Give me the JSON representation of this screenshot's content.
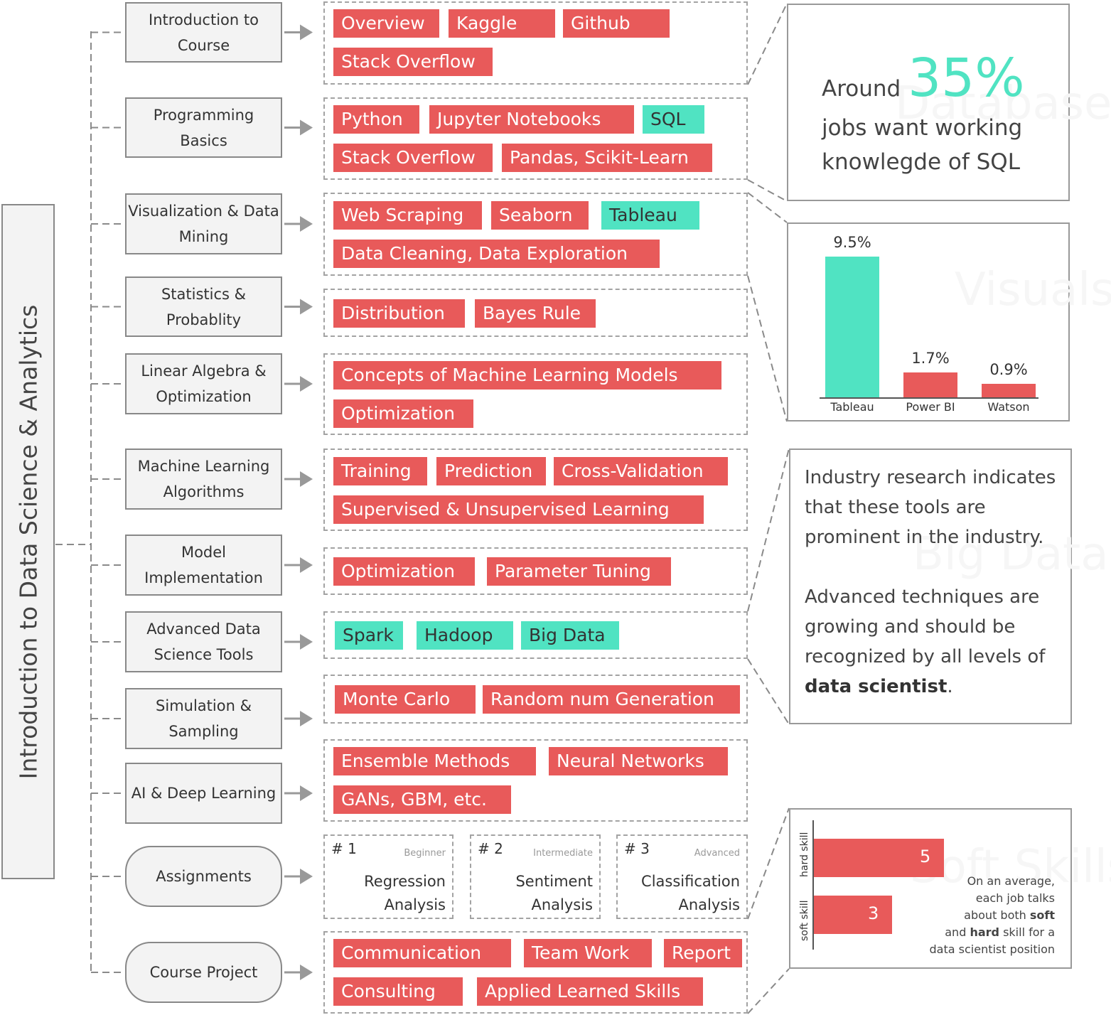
{
  "root_title": "Introduction to Data Science & Analytics",
  "rows": [
    {
      "topic": "Introduction to Course",
      "tags": [
        {
          "label": "Overview",
          "color": "#e85a5a"
        },
        {
          "label": "Kaggle",
          "color": "#e85a5a"
        },
        {
          "label": "Github",
          "color": "#e85a5a"
        },
        {
          "label": "Stack Overflow",
          "color": "#e85a5a"
        }
      ]
    },
    {
      "topic": "Programming Basics",
      "tags": [
        {
          "label": "Python",
          "color": "#e85a5a"
        },
        {
          "label": "Jupyter Notebooks",
          "color": "#e85a5a"
        },
        {
          "label": "SQL",
          "color": "#50e3c2"
        },
        {
          "label": "Stack Overflow",
          "color": "#e85a5a"
        },
        {
          "label": "Pandas, Scikit-Learn",
          "color": "#e85a5a"
        }
      ]
    },
    {
      "topic": "Visualization & Data Mining",
      "tags": [
        {
          "label": "Web Scraping",
          "color": "#e85a5a"
        },
        {
          "label": "Seaborn",
          "color": "#e85a5a"
        },
        {
          "label": "Tableau",
          "color": "#50e3c2"
        },
        {
          "label": "Data Cleaning, Data Exploration",
          "color": "#e85a5a"
        }
      ]
    },
    {
      "topic": "Statistics & Probablity",
      "tags": [
        {
          "label": "Distribution",
          "color": "#e85a5a"
        },
        {
          "label": "Bayes Rule",
          "color": "#e85a5a"
        }
      ]
    },
    {
      "topic": "Linear Algebra & Optimization",
      "tags": [
        {
          "label": "Concepts of Machine Learning Models",
          "color": "#e85a5a"
        },
        {
          "label": "Optimization",
          "color": "#e85a5a"
        }
      ]
    },
    {
      "topic": "Machine Learning Algorithms",
      "tags": [
        {
          "label": "Training",
          "color": "#e85a5a"
        },
        {
          "label": "Prediction",
          "color": "#e85a5a"
        },
        {
          "label": "Cross-Validation",
          "color": "#e85a5a"
        },
        {
          "label": "Supervised & Unsupervised Learning",
          "color": "#e85a5a"
        }
      ]
    },
    {
      "topic": "Model Implementation",
      "tags": [
        {
          "label": "Optimization",
          "color": "#e85a5a"
        },
        {
          "label": "Parameter Tuning",
          "color": "#e85a5a"
        }
      ]
    },
    {
      "topic": "Advanced Data Science Tools",
      "tags": [
        {
          "label": "Spark",
          "color": "#50e3c2"
        },
        {
          "label": "Hadoop",
          "color": "#50e3c2"
        },
        {
          "label": "Big Data",
          "color": "#50e3c2"
        }
      ]
    },
    {
      "topic": "Simulation & Sampling",
      "tags": [
        {
          "label": "Monte Carlo",
          "color": "#e85a5a"
        },
        {
          "label": "Random num Generation",
          "color": "#e85a5a"
        }
      ]
    },
    {
      "topic": "AI & Deep Learning",
      "tags": [
        {
          "label": "Ensemble Methods",
          "color": "#e85a5a"
        },
        {
          "label": "Neural Networks",
          "color": "#e85a5a"
        },
        {
          "label": "GANs, GBM, etc.",
          "color": "#e85a5a"
        }
      ]
    },
    {
      "topic": "Assignments",
      "assignments": [
        {
          "num": "# 1",
          "level": "Beginner",
          "title_line1": "Regression",
          "title_line2": "Analysis"
        },
        {
          "num": "# 2",
          "level": "Intermediate",
          "title_line1": "Sentiment",
          "title_line2": "Analysis"
        },
        {
          "num": "# 3",
          "level": "Advanced",
          "title_line1": "Classification",
          "title_line2": "Analysis"
        }
      ]
    },
    {
      "topic": "Course Project",
      "tags": [
        {
          "label": "Communication",
          "color": "#e85a5a"
        },
        {
          "label": "Team Work",
          "color": "#e85a5a"
        },
        {
          "label": "Report",
          "color": "#e85a5a"
        },
        {
          "label": "Consulting",
          "color": "#e85a5a"
        },
        {
          "label": "Applied Learned Skills",
          "color": "#e85a5a"
        }
      ]
    }
  ],
  "sql_card": {
    "prefix": "Around",
    "percent": "35%",
    "line2": "jobs want working",
    "line3": "knowlegde of SQL",
    "ghost": "Database"
  },
  "visuals_card": {
    "ghost": "Visuals"
  },
  "note_card": {
    "p1": "Industry research indicates that these tools are prominent in the industry.",
    "p2_text": "Advanced techniques are growing and should be recognized by all levels of",
    "p2_bold": "data scientist",
    "p2_end": ".",
    "ghost": "Big Data"
  },
  "soft_card": {
    "ghost": "Soft Skills",
    "note_line1": "On an average,",
    "note_line2": "each job talks",
    "note_line3_text": "about both",
    "note_line3_bold": "soft",
    "note_line4_bold": "hard",
    "note_line4_text": "skill for a",
    "note_line4_prefix": "and",
    "note_line5": "data scientist position"
  },
  "chart_data": [
    {
      "type": "bar",
      "categories": [
        "Tableau",
        "Power BI",
        "Watson"
      ],
      "values": [
        9.5,
        1.7,
        0.9
      ],
      "value_labels": [
        "9.5%",
        "1.7%",
        "0.9%"
      ],
      "colors": [
        "#50e3c2",
        "#e85a5a",
        "#e85a5a"
      ],
      "ylim": [
        0,
        9.5
      ],
      "grid": false
    },
    {
      "type": "bar",
      "orientation": "horizontal",
      "categories": [
        "hard skill",
        "soft skill"
      ],
      "values": [
        5,
        3
      ],
      "value_labels": [
        "5",
        "3"
      ],
      "colors": [
        "#e85a5a",
        "#e85a5a"
      ],
      "xlim": [
        0,
        5
      ],
      "grid": false
    }
  ]
}
